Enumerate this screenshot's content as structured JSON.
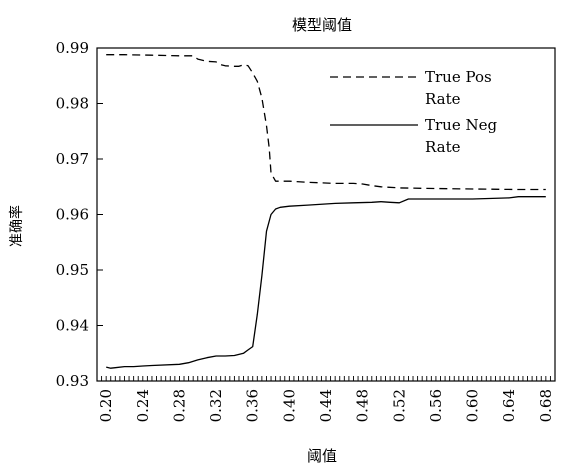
{
  "chart_data": {
    "type": "line",
    "title": "模型阈值",
    "xlabel": "阈值",
    "ylabel": "准确率",
    "xlim": [
      0.19,
      0.69
    ],
    "ylim": [
      0.93,
      0.99
    ],
    "xticks": [
      0.2,
      0.24,
      0.28,
      0.32,
      0.36,
      0.4,
      0.44,
      0.48,
      0.52,
      0.56,
      0.6,
      0.64,
      0.68
    ],
    "xtick_labels": [
      "0.20",
      "0.24",
      "0.28",
      "0.32",
      "0.36",
      "0.40",
      "0.44",
      "0.48",
      "0.52",
      "0.56",
      "0.60",
      "0.64",
      "0.68"
    ],
    "yticks": [
      0.93,
      0.94,
      0.95,
      0.96,
      0.97,
      0.98,
      0.99
    ],
    "ytick_labels": [
      "0.93",
      "0.94",
      "0.95",
      "0.96",
      "0.97",
      "0.98",
      "0.99"
    ],
    "minor_xtick_step": 0.005,
    "grid": false,
    "legend_position": "top-right",
    "series": [
      {
        "name": "True Pos Rate",
        "legend_lines": [
          "True Pos",
          "Rate"
        ],
        "style": "dashed",
        "color": "#000000",
        "x": [
          0.2,
          0.22,
          0.25,
          0.28,
          0.295,
          0.3,
          0.31,
          0.32,
          0.325,
          0.33,
          0.34,
          0.345,
          0.35,
          0.355,
          0.36,
          0.365,
          0.37,
          0.375,
          0.378,
          0.38,
          0.385,
          0.39,
          0.4,
          0.42,
          0.45,
          0.47,
          0.48,
          0.49,
          0.5,
          0.52,
          0.55,
          0.6,
          0.65,
          0.68
        ],
        "y": [
          0.9888,
          0.9888,
          0.9887,
          0.9886,
          0.9886,
          0.988,
          0.9876,
          0.9875,
          0.987,
          0.9868,
          0.9867,
          0.9867,
          0.987,
          0.9868,
          0.9855,
          0.984,
          0.981,
          0.976,
          0.972,
          0.9675,
          0.966,
          0.966,
          0.966,
          0.9658,
          0.9656,
          0.9656,
          0.9655,
          0.9652,
          0.965,
          0.9648,
          0.9647,
          0.9646,
          0.9645,
          0.9645
        ]
      },
      {
        "name": "True Neg Rate",
        "legend_lines": [
          "True Neg",
          "Rate"
        ],
        "style": "solid",
        "color": "#000000",
        "x": [
          0.2,
          0.205,
          0.21,
          0.22,
          0.23,
          0.24,
          0.25,
          0.28,
          0.29,
          0.3,
          0.31,
          0.32,
          0.33,
          0.34,
          0.35,
          0.355,
          0.36,
          0.365,
          0.37,
          0.375,
          0.38,
          0.385,
          0.39,
          0.4,
          0.42,
          0.45,
          0.47,
          0.49,
          0.5,
          0.51,
          0.52,
          0.53,
          0.55,
          0.6,
          0.64,
          0.65,
          0.68
        ],
        "y": [
          0.9325,
          0.9323,
          0.9324,
          0.9326,
          0.9326,
          0.9327,
          0.9328,
          0.933,
          0.9333,
          0.9338,
          0.9342,
          0.9345,
          0.9345,
          0.9346,
          0.935,
          0.9356,
          0.9362,
          0.942,
          0.949,
          0.957,
          0.96,
          0.961,
          0.9613,
          0.9615,
          0.9617,
          0.962,
          0.9621,
          0.9622,
          0.9623,
          0.9622,
          0.9621,
          0.9628,
          0.9628,
          0.9628,
          0.963,
          0.9632,
          0.9632
        ]
      }
    ]
  }
}
